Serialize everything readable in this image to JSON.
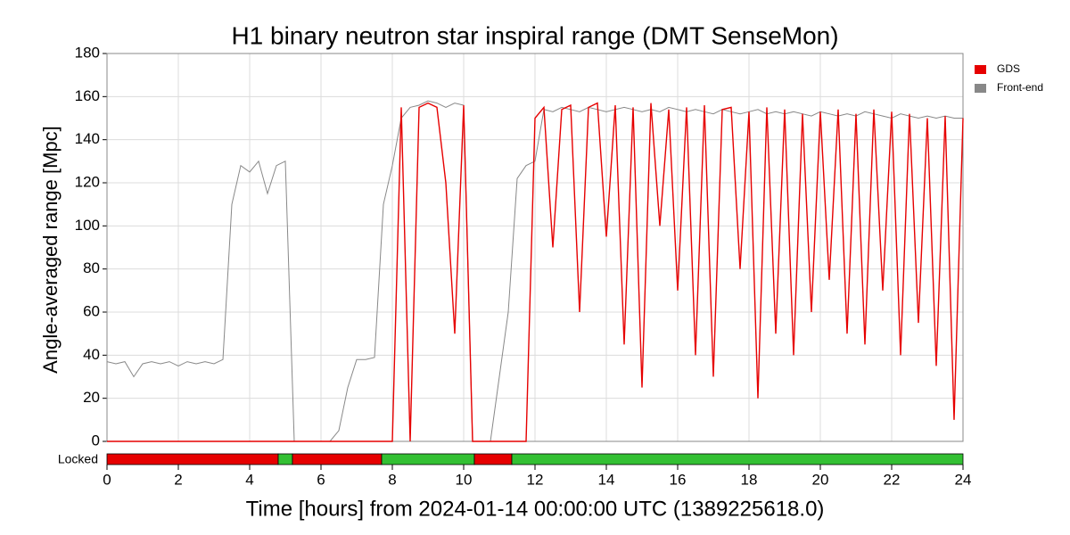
{
  "chart_data": {
    "type": "line",
    "title": "H1 binary neutron star inspiral range (DMT SenseMon)",
    "xlabel": "Time [hours] from 2024-01-14 00:00:00 UTC (1389225618.0)",
    "ylabel": "Angle-averaged range [Mpc]",
    "x": [
      0,
      0.25,
      0.5,
      0.75,
      1,
      1.25,
      1.5,
      1.75,
      2,
      2.25,
      2.5,
      2.75,
      3,
      3.25,
      3.5,
      3.75,
      4,
      4.25,
      4.5,
      4.75,
      5,
      5.25,
      5.5,
      5.75,
      6,
      6.25,
      6.5,
      6.75,
      7,
      7.25,
      7.5,
      7.75,
      8,
      8.25,
      8.5,
      8.75,
      9,
      9.25,
      9.5,
      9.75,
      10,
      10.25,
      10.5,
      10.75,
      11,
      11.25,
      11.5,
      11.75,
      12,
      12.25,
      12.5,
      12.75,
      13,
      13.25,
      13.5,
      13.75,
      14,
      14.25,
      14.5,
      14.75,
      15,
      15.25,
      15.5,
      15.75,
      16,
      16.25,
      16.5,
      16.75,
      17,
      17.25,
      17.5,
      17.75,
      18,
      18.25,
      18.5,
      18.75,
      19,
      19.25,
      19.5,
      19.75,
      20,
      20.25,
      20.5,
      20.75,
      21,
      21.25,
      21.5,
      21.75,
      22,
      22.25,
      22.5,
      22.75,
      23,
      23.25,
      23.5,
      23.75,
      24
    ],
    "series": [
      {
        "name": "Front-end",
        "color": "#888888",
        "values": [
          37,
          36,
          37,
          30,
          36,
          37,
          36,
          37,
          35,
          37,
          36,
          37,
          36,
          38,
          110,
          128,
          125,
          130,
          115,
          128,
          130,
          0,
          0,
          0,
          0,
          0,
          5,
          25,
          38,
          38,
          39,
          110,
          128,
          150,
          155,
          156,
          158,
          157,
          155,
          157,
          156,
          0,
          0,
          0,
          30,
          60,
          122,
          128,
          130,
          154,
          153,
          155,
          154,
          153,
          155,
          154,
          153,
          154,
          155,
          154,
          153,
          154,
          153,
          155,
          154,
          153,
          154,
          153,
          152,
          154,
          153,
          152,
          153,
          154,
          152,
          153,
          152,
          153,
          152,
          151,
          153,
          152,
          151,
          152,
          151,
          153,
          152,
          151,
          150,
          152,
          151,
          150,
          151,
          150,
          151,
          150,
          150
        ]
      },
      {
        "name": "GDS",
        "color": "#e60000",
        "values": [
          0,
          0,
          0,
          0,
          0,
          0,
          0,
          0,
          0,
          0,
          0,
          0,
          0,
          0,
          0,
          0,
          0,
          0,
          0,
          0,
          0,
          0,
          0,
          0,
          0,
          0,
          0,
          0,
          0,
          0,
          0,
          0,
          0,
          155,
          0,
          155,
          157,
          155,
          120,
          50,
          156,
          0,
          0,
          0,
          0,
          0,
          0,
          0,
          150,
          155,
          90,
          154,
          156,
          60,
          155,
          157,
          95,
          156,
          45,
          155,
          25,
          157,
          100,
          154,
          70,
          155,
          40,
          156,
          30,
          154,
          155,
          80,
          153,
          20,
          155,
          50,
          154,
          40,
          152,
          60,
          153,
          75,
          154,
          50,
          152,
          45,
          154,
          70,
          153,
          40,
          152,
          55,
          150,
          35,
          151,
          10,
          150
        ]
      }
    ],
    "legend_order": [
      "GDS",
      "Front-end"
    ],
    "xlim": [
      0,
      24
    ],
    "xticks": [
      0,
      2,
      4,
      6,
      8,
      10,
      12,
      14,
      16,
      18,
      20,
      22,
      24
    ],
    "ylim": [
      0,
      180
    ],
    "yticks": [
      0,
      20,
      40,
      60,
      80,
      100,
      120,
      140,
      160,
      180
    ],
    "grid": true,
    "legend": "upper right outside",
    "state_label": "Locked",
    "locked_segments": [
      {
        "start": 0,
        "end": 4.8,
        "color": "#e60000"
      },
      {
        "start": 4.8,
        "end": 5.2,
        "color": "#33c033"
      },
      {
        "start": 5.2,
        "end": 7.7,
        "color": "#e60000"
      },
      {
        "start": 7.7,
        "end": 10.3,
        "color": "#33c033"
      },
      {
        "start": 10.3,
        "end": 11.35,
        "color": "#e60000"
      },
      {
        "start": 11.35,
        "end": 24,
        "color": "#33c033"
      }
    ]
  }
}
